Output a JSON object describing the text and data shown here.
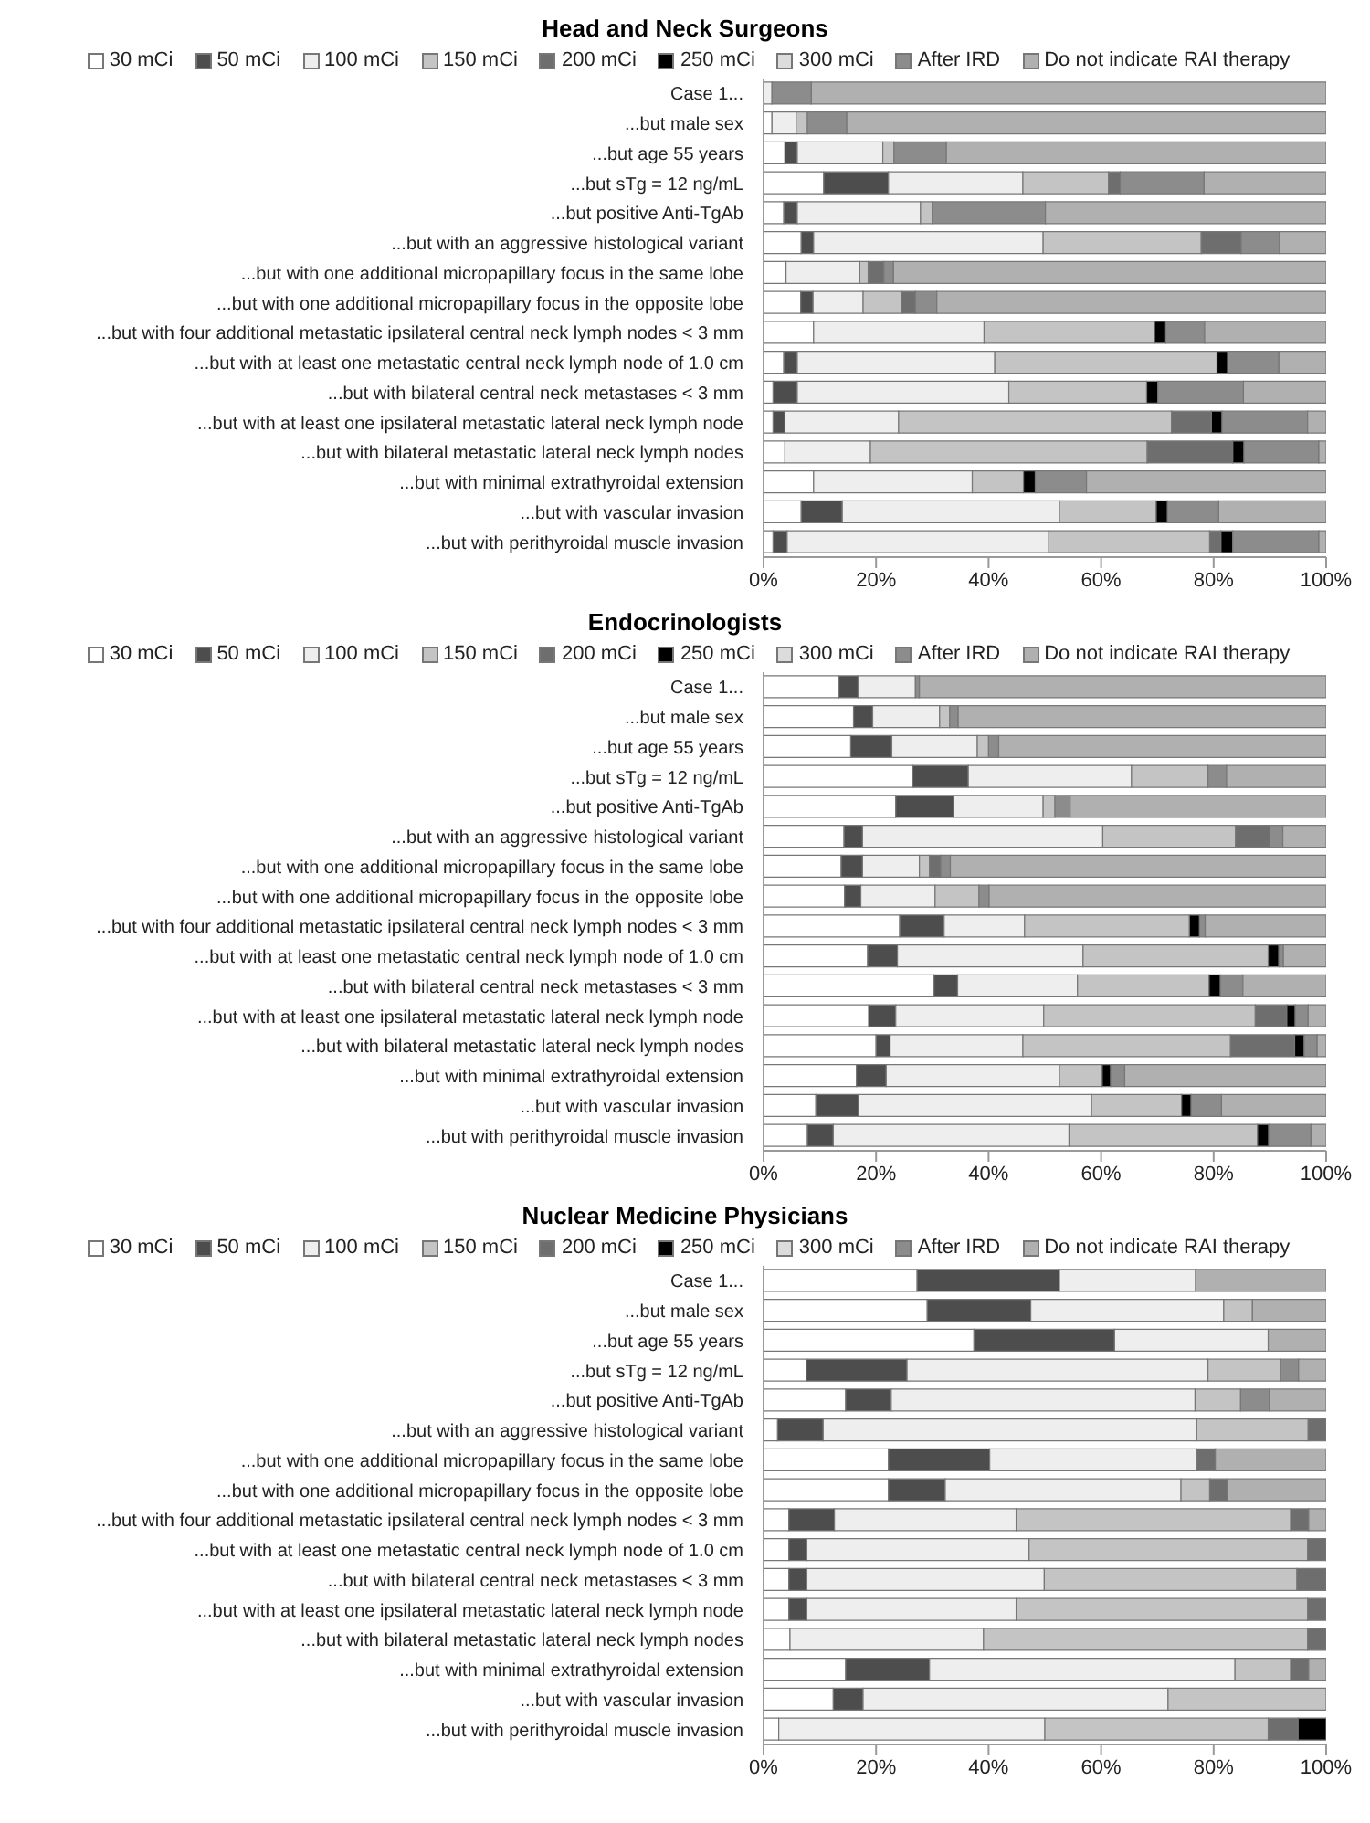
{
  "chart_data": [
    {
      "type": "bar",
      "orientation": "horizontal",
      "stacked": true,
      "legend": "top",
      "title": "Head and Neck Surgeons",
      "categories": [
        "Case 1...",
        "...but male sex",
        "...but age 55 years",
        "...but sTg = 12 ng/mL",
        "...but positive Anti-TgAb",
        "...but with an aggressive histological variant",
        "...but with one additional micropapillary focus in the same lobe",
        "...but with one additional micropapillary focus in the opposite lobe",
        "...but with four additional metastatic ipsilateral central neck lymph nodes < 3 mm",
        "...but with at least one metastatic central neck lymph node of 1.0 cm",
        "...but with bilateral central neck metastases < 3 mm",
        "...but with at least one ipsilateral metastatic lateral neck lymph node",
        "...but with bilateral metastatic lateral neck lymph nodes",
        "...but with minimal extrathyroidal extension",
        "...but with vascular invasion",
        "...but with perithyroidal muscle invasion"
      ],
      "xlim": [
        0,
        100
      ],
      "xticks": [
        {
          "value": 0,
          "label": "0%"
        },
        {
          "value": 20,
          "label": "20%"
        },
        {
          "value": 40,
          "label": "40%"
        },
        {
          "value": 60,
          "label": "60%"
        },
        {
          "value": 80,
          "label": "80%"
        },
        {
          "value": 100,
          "label": "100%"
        }
      ],
      "series": [
        {
          "name": "30 mCi",
          "color": "#ffffff",
          "values": [
            null,
            1.5,
            3.8,
            10.7,
            3.6,
            6.7,
            4,
            6.6,
            8.9,
            3.6,
            1.7,
            1.7,
            3.8,
            8.9,
            6.7,
            1.7
          ]
        },
        {
          "name": "50 mCi",
          "color": "#4d4d4d",
          "values": [
            null,
            null,
            2.2,
            11.5,
            2.4,
            2.2,
            null,
            2.2,
            null,
            2.4,
            4.3,
            2.1,
            null,
            null,
            7.3,
            2.5
          ]
        },
        {
          "name": "100 mCi",
          "color": "#eeeeee",
          "values": [
            1.5,
            4.3,
            15.2,
            23.9,
            21.9,
            40.8,
            13.1,
            8.9,
            30.3,
            35.1,
            37.6,
            20.2,
            15.2,
            28.2,
            38.6,
            46.5
          ]
        },
        {
          "name": "150 mCi",
          "color": "#c4c4c4",
          "values": [
            null,
            2,
            2,
            15.2,
            2.1,
            28.1,
            1.5,
            6.8,
            30.3,
            39.5,
            24.5,
            48.5,
            49.2,
            9.1,
            17.2,
            28.6
          ]
        },
        {
          "name": "200 mCi",
          "color": "#6e6e6e",
          "values": [
            null,
            null,
            null,
            2.1,
            null,
            7.1,
            2.8,
            2.5,
            null,
            null,
            null,
            7.1,
            15.2,
            null,
            null,
            2
          ]
        },
        {
          "name": "250 mCi",
          "color": "#000000",
          "values": [
            null,
            null,
            null,
            null,
            null,
            null,
            null,
            null,
            2,
            1.9,
            2,
            1.9,
            2,
            2.1,
            2,
            2.1
          ]
        },
        {
          "name": "300 mCi",
          "color": "#dcdcdc",
          "values": [
            null,
            null,
            null,
            null,
            null,
            null,
            null,
            null,
            null,
            null,
            null,
            null,
            null,
            null,
            null,
            null
          ]
        },
        {
          "name": "After IRD",
          "color": "#8c8c8c",
          "values": [
            7,
            7,
            9.3,
            14.9,
            20.1,
            6.8,
            1.7,
            3.8,
            6.9,
            9.1,
            15.2,
            15.2,
            13.3,
            9.1,
            9.1,
            15.3
          ]
        },
        {
          "name": "Do not indicate RAI therapy",
          "color": "#b0b0b0",
          "values": [
            91.5,
            85.2,
            67.5,
            21.7,
            49.9,
            8.3,
            76.9,
            69.2,
            21.6,
            8.4,
            14.7,
            3.3,
            1.3,
            42.6,
            19.1,
            1.3
          ]
        }
      ]
    },
    {
      "type": "bar",
      "orientation": "horizontal",
      "stacked": true,
      "legend": "top",
      "title": "Endocrinologists",
      "categories": [
        "Case 1...",
        "...but male sex",
        "...but age 55 years",
        "...but sTg = 12 ng/mL",
        "...but positive Anti-TgAb",
        "...but with an aggressive histological variant",
        "...but with one additional micropapillary focus in the same lobe",
        "...but with one additional micropapillary focus in the opposite lobe",
        "...but with four additional metastatic ipsilateral central neck lymph nodes < 3 mm",
        "...but with at least one metastatic central neck lymph node of 1.0 cm",
        "...but with bilateral central neck metastases < 3 mm",
        "...but with at least one ipsilateral metastatic lateral neck lymph node",
        "...but with bilateral metastatic lateral neck lymph nodes",
        "...but with minimal extrathyroidal extension",
        "...but with vascular invasion",
        "...but with perithyroidal muscle invasion"
      ],
      "xlim": [
        0,
        100
      ],
      "xticks": [
        {
          "value": 0,
          "label": "0%"
        },
        {
          "value": 20,
          "label": "20%"
        },
        {
          "value": 40,
          "label": "40%"
        },
        {
          "value": 60,
          "label": "60%"
        },
        {
          "value": 80,
          "label": "80%"
        },
        {
          "value": 100,
          "label": "100%"
        }
      ],
      "series": [
        {
          "name": "30 mCi",
          "color": "#ffffff",
          "values": [
            13.4,
            16,
            15.5,
            26.5,
            23.5,
            14.3,
            13.8,
            14.4,
            24.2,
            18.5,
            30.3,
            18.7,
            20,
            16.5,
            9.3,
            7.8
          ]
        },
        {
          "name": "50 mCi",
          "color": "#4d4d4d",
          "values": [
            3.4,
            3.4,
            7.3,
            9.9,
            10.3,
            3.3,
            3.8,
            2.9,
            7.9,
            5.3,
            4.2,
            4.8,
            2.5,
            5.3,
            7.6,
            4.6
          ]
        },
        {
          "name": "100 mCi",
          "color": "#eeeeee",
          "values": [
            10.2,
            11.9,
            15.2,
            29,
            15.9,
            42.7,
            10.1,
            13.2,
            14.3,
            33,
            21.3,
            26.3,
            23.6,
            30.8,
            41.4,
            41.9
          ]
        },
        {
          "name": "150 mCi",
          "color": "#c4c4c4",
          "values": [
            null,
            1.8,
            2,
            13.6,
            2.1,
            23.6,
            1.8,
            7.8,
            29.3,
            32.9,
            23.4,
            37.6,
            36.9,
            7.6,
            16,
            33.5
          ]
        },
        {
          "name": "200 mCi",
          "color": "#6e6e6e",
          "values": [
            null,
            null,
            null,
            null,
            null,
            6.1,
            2,
            null,
            null,
            null,
            null,
            5.6,
            11.4,
            null,
            null,
            null
          ]
        },
        {
          "name": "250 mCi",
          "color": "#000000",
          "values": [
            null,
            null,
            null,
            null,
            null,
            null,
            null,
            null,
            1.8,
            1.9,
            2,
            1.5,
            1.7,
            1.5,
            1.7,
            2
          ]
        },
        {
          "name": "300 mCi",
          "color": "#dcdcdc",
          "values": [
            null,
            null,
            null,
            null,
            null,
            null,
            null,
            null,
            null,
            null,
            null,
            null,
            null,
            null,
            null,
            null
          ]
        },
        {
          "name": "After IRD",
          "color": "#8c8c8c",
          "values": [
            0.7,
            1.5,
            1.8,
            3.3,
            2.7,
            2.3,
            1.7,
            1.8,
            1,
            0.8,
            4,
            2.3,
            2.3,
            2.5,
            5.4,
            7.5
          ]
        },
        {
          "name": "Do not indicate RAI therapy",
          "color": "#b0b0b0",
          "values": [
            72.3,
            65.4,
            58.2,
            17.7,
            45.5,
            7.7,
            66.8,
            59.9,
            21.5,
            7.6,
            14.8,
            3.2,
            1.6,
            35.8,
            18.6,
            2.7
          ]
        }
      ]
    },
    {
      "type": "bar",
      "orientation": "horizontal",
      "stacked": true,
      "legend": "top",
      "title": "Nuclear Medicine Physicians",
      "categories": [
        "Case 1...",
        "...but male sex",
        "...but age 55 years",
        "...but sTg = 12 ng/mL",
        "...but positive Anti-TgAb",
        "...but with an aggressive histological variant",
        "...but with one additional micropapillary focus in the same lobe",
        "...but with one additional micropapillary focus in the opposite lobe",
        "...but with four additional metastatic ipsilateral central neck lymph nodes < 3 mm",
        "...but with at least one metastatic central neck lymph node of 1.0 cm",
        "...but with bilateral central neck metastases < 3 mm",
        "...but with at least one ipsilateral metastatic lateral neck lymph node",
        "...but with bilateral metastatic lateral neck lymph nodes",
        "...but with minimal extrathyroidal extension",
        "...but with vascular invasion",
        "...but with perithyroidal muscle invasion"
      ],
      "xlim": [
        0,
        100
      ],
      "xticks": [
        {
          "value": 0,
          "label": "0%"
        },
        {
          "value": 20,
          "label": "20%"
        },
        {
          "value": 40,
          "label": "40%"
        },
        {
          "value": 60,
          "label": "60%"
        },
        {
          "value": 80,
          "label": "80%"
        },
        {
          "value": 100,
          "label": "100%"
        }
      ],
      "series": [
        {
          "name": "30 mCi",
          "color": "#ffffff",
          "values": [
            27.3,
            29.1,
            37.4,
            7.6,
            14.6,
            2.5,
            22.2,
            22.2,
            4.5,
            4.5,
            4.5,
            4.5,
            4.7,
            14.6,
            12.4,
            2.7
          ]
        },
        {
          "name": "50 mCi",
          "color": "#4d4d4d",
          "values": [
            25.3,
            18.4,
            25,
            17.9,
            8.1,
            8.1,
            18,
            10.1,
            8.1,
            3.2,
            3.2,
            3.2,
            null,
            14.9,
            5.3,
            null
          ]
        },
        {
          "name": "100 mCi",
          "color": "#eeeeee",
          "values": [
            24.2,
            34.3,
            27.3,
            53.5,
            54,
            66.4,
            36.8,
            41.9,
            32.3,
            39.5,
            42.2,
            37.2,
            34.4,
            54.3,
            54.2,
            47.3
          ]
        },
        {
          "name": "150 mCi",
          "color": "#c4c4c4",
          "values": [
            null,
            5.1,
            null,
            12.9,
            8.1,
            19.8,
            null,
            5.1,
            48.8,
            49.5,
            44.9,
            51.8,
            57.6,
            9.9,
            28.1,
            39.7
          ]
        },
        {
          "name": "200 mCi",
          "color": "#6e6e6e",
          "values": [
            null,
            null,
            null,
            null,
            null,
            3.2,
            3.3,
            3.2,
            3.2,
            3.3,
            5.2,
            3.3,
            3.3,
            3.2,
            null,
            5.3
          ]
        },
        {
          "name": "250 mCi",
          "color": "#000000",
          "values": [
            null,
            null,
            null,
            null,
            null,
            null,
            null,
            null,
            null,
            null,
            null,
            null,
            null,
            null,
            null,
            5
          ]
        },
        {
          "name": "300 mCi",
          "color": "#dcdcdc",
          "values": [
            null,
            null,
            null,
            null,
            null,
            null,
            null,
            null,
            null,
            null,
            null,
            null,
            null,
            null,
            null,
            null
          ]
        },
        {
          "name": "After IRD",
          "color": "#8c8c8c",
          "values": [
            null,
            null,
            null,
            3.2,
            5.1,
            null,
            null,
            null,
            null,
            null,
            null,
            null,
            null,
            null,
            null,
            null
          ]
        },
        {
          "name": "Do not indicate RAI therapy",
          "color": "#b0b0b0",
          "values": [
            23.2,
            13.1,
            10.3,
            4.9,
            10.1,
            null,
            19.7,
            17.5,
            3.1,
            null,
            null,
            null,
            null,
            3.1,
            null,
            null
          ]
        }
      ]
    }
  ]
}
